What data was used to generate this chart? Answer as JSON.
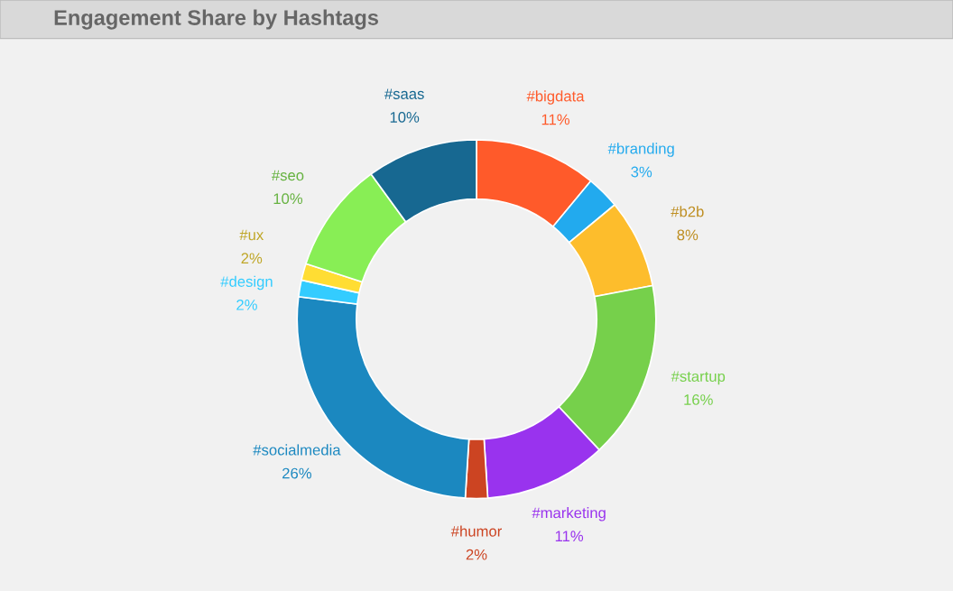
{
  "chart_data": {
    "type": "donut",
    "title": "Engagement Share by Hashtags",
    "categories": [
      "#bigdata",
      "#branding",
      "#b2b",
      "#startup",
      "#marketing",
      "#humor",
      "#socialmedia",
      "#design",
      "#ux",
      "#seo",
      "#saas"
    ],
    "values": [
      11,
      3,
      8,
      16,
      11,
      2,
      26,
      1.5,
      1.5,
      10,
      10
    ],
    "value_labels": [
      "11%",
      "3%",
      "8%",
      "16%",
      "11%",
      "2%",
      "26%",
      "2%",
      "2%",
      "10%",
      "10%"
    ],
    "colors": [
      "#ff5a2a",
      "#22aaee",
      "#fdbd2c",
      "#76d04b",
      "#9933ee",
      "#cc4422",
      "#1b88c0",
      "#33ccff",
      "#ffdd33",
      "#88ee55",
      "#176891"
    ],
    "legend": false
  }
}
